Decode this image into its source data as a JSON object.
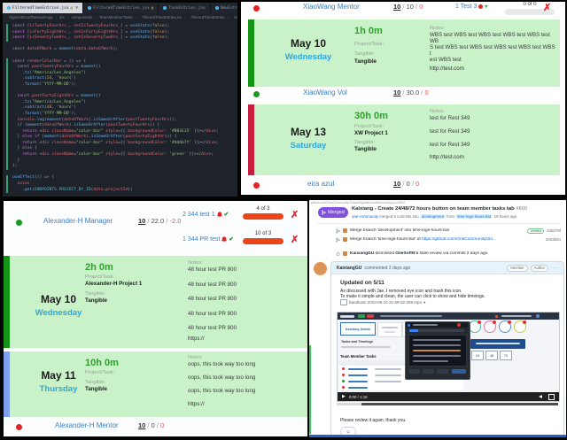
{
  "icons": {
    "x": "✗",
    "check": "✔",
    "chevron": "▾",
    "close": "×",
    "crumb_sep": "›",
    "play": "▶",
    "smiley": "☺",
    "ellipsis": "…",
    "kebab": "···",
    "attach_caret": "▾"
  },
  "labels": {
    "project": "Project/Task:",
    "tangible": "Tangible:",
    "notes": "Notes:",
    "sep": " / "
  },
  "editor": {
    "tabs": [
      {
        "label": "FilteredTimeEntries.jsx",
        "status": "M",
        "icon": "react",
        "active": true
      },
      {
        "label": "FilteredTimeEntries.jsx",
        "status": "M",
        "icon": "react",
        "active": false
      },
      {
        "label": "TaskEntries.jsx",
        "status": "",
        "icon": "react",
        "active": false
      },
      {
        "label": "NewEntryForm.jsx",
        "status": "",
        "icon": "react",
        "active": false
      },
      {
        "label": "checkRegist...",
        "status": "",
        "icon": "js",
        "active": false
      }
    ],
    "breadcrumb": [
      {
        "label": "HighestGoodNetworkApp",
        "icon": ""
      },
      {
        "label": "src",
        "icon": ""
      },
      {
        "label": "components",
        "icon": ""
      },
      {
        "label": "TeamMemberTasks",
        "icon": ""
      },
      {
        "label": "FilteredTimeEntries.jsx",
        "icon": "react"
      },
      {
        "label": "FilteredTimeEntries",
        "icon": "sym"
      },
      {
        "label": "renderColorBar",
        "icon": "sym"
      }
    ],
    "code": [
      "const [isTwentyFourHrs_, setIsTwentyFourHrs_] = useState(false);",
      "const [isFortyEightHrs_, setIsFortyEightHrs_] = useState(false);",
      "const [isSeventyTwoHrs_, setIsSeventyTwoHrs_] = useState(false);",
      "",
      "const dateOfWork = moment(data.dateOfWork);",
      "",
      "const renderColorBar = () => {",
      "  const pastTwentyFourHrs = moment()",
      "    .tz(\"America/Los_Angeles\")",
      "    .subtract(24, 'hours')",
      "    .format('YYYY-MM-DD');",
      "",
      "  const pastFortyEightHrs = moment()",
      "    .tz(\"America/Los_Angeles\")",
      "    .subtract(48, 'hours')",
      "    .format('YYYY-MM-DD');",
      "  console.log(moment(dateOfWork).isSameOrAfter(pastTwentyFourHrs));",
      "  if (moment(dateOfWork).isSameOrAfter(pastTwentyFourHrs)) {",
      "    return <div className=\"color-bar\" style={{ backgroundColor: '#B01E35' }}></div>;",
      "  } else if (moment(dateOfWork).isSameOrAfter(pastFortyEightHrs)) {",
      "    return <div className=\"color-bar\" style={{ backgroundColor: '#dd6b7f' }}></div>;",
      "  } else {",
      "    return <div className=\"color-bar\" style={{ backgroundColor: 'green' }}></div>;",
      "  }",
      "};",
      "",
      "useEffect(() => {",
      "  axios",
      "    .get(ENDPOINTS.PROJECT_BY_ID(data.projectId))"
    ]
  },
  "top_panel": {
    "rows": [
      {
        "name": "XiaoWang Mentor",
        "a": "10",
        "b": "10",
        "c": "0",
        "task": "1 Test 3",
        "progress": "0 of 0"
      },
      {
        "name": "XiaoWang Vol",
        "a": "10",
        "b": "30.0",
        "c": "0"
      },
      {
        "name": "eira azul",
        "a": "10",
        "b": "0",
        "c": "0"
      }
    ],
    "entries": [
      {
        "date": "May 10",
        "day": "Wednesday",
        "duration": "1h 0m",
        "project": "",
        "tangible": "Tangible",
        "notes": [
          "WBS test WBS test WBS test WBS test WBS test WB",
          "S test WBS test WBS test WBS test WBS test WBS t",
          "est  WBS test"
        ],
        "link": "http://test.com"
      },
      {
        "date": "May 13",
        "day": "Saturday",
        "duration": "30h 0m",
        "project": "XW Project 1",
        "tangible": "Tangible",
        "notes": [
          "test for Rest 349",
          "test for Rest 349",
          "test for Rest 349"
        ],
        "link": "http://test.com"
      }
    ]
  },
  "bottom_panel": {
    "rows": [
      {
        "name": "Alexander-H Manager",
        "a": "10",
        "b": "22.0",
        "c": "-2.0"
      },
      {
        "name": "Alexander-H Mentor",
        "a": "10",
        "b": "0",
        "c": "0"
      }
    ],
    "tasks": [
      {
        "label": "2 344 test 1",
        "progress": "4 of 3"
      },
      {
        "label": "1 344 PR test",
        "progress": "10 of 3"
      }
    ],
    "entries": [
      {
        "date": "May 10",
        "day": "Wednesday",
        "duration": "2h 0m",
        "project": "Alexander-H Project 1",
        "tangible": "Tangible",
        "notes": [
          "48 hour test PR 800",
          "48 hour test PR 800",
          "48 hour test PR 800",
          "48 hour test PR 800",
          "48 hour test PR 800"
        ],
        "link": "https://"
      },
      {
        "date": "May 11",
        "day": "Thursday",
        "duration": "10h 0m",
        "project": "",
        "tangible": "Tangible",
        "notes": [
          "oops, this took way too long",
          "oops, this took way too long",
          "oops, this took way too long"
        ],
        "link": "https://"
      }
    ]
  },
  "github": {
    "url": "github.com/OneCommunityGlobal/HighestGoodNetworkApp/pull/800",
    "merged_badge": "Merged",
    "title": "Kaixiang - Create 24/48/72 hours button on team member tasks tab",
    "pr_number": "#800",
    "merge_line": {
      "user": "one-community",
      "action": "merged 5 commits into",
      "base": "development",
      "from_word": "from",
      "head": "time-logs-hours-bar",
      "time": "19 hours ago"
    },
    "timeline": [
      {
        "text": "Merge branch 'development' into time-logs-hours-bar",
        "badge": "Verified",
        "hash": "33d279f"
      },
      {
        "text": "Merge branch 'time-logs-hours-bar' of",
        "link": "https://github.com/OneCommunityGlo…",
        "hash": "2e03b94"
      },
      {
        "user": "KaixiangGU",
        "action": "dismissed",
        "target": "OneSoftN's",
        "rest": "stale review via commits  2 days ago"
      }
    ],
    "comment": {
      "author": "KaixiangGU",
      "meta": "commented 2 days ago",
      "badges": [
        "Member",
        "Author"
      ],
      "heading": "Updated on 5/11",
      "body_line1": "As discussed with Jae, I removed eye icon and trash this icon.",
      "body_line2": "To make it simple and clean, the user can click to show and hide timelogs.",
      "attachment": "bandicam 2023-05-10 21-59-32-269.mp4",
      "closing": "Please review it again, thank you."
    },
    "video": {
      "time": "0:00 / 1:18",
      "thumb": {
        "profile": "Kaixiang Admin",
        "tasks_heading": "Tasks and Timelogs",
        "table_heading": "Team Member Tasks",
        "buttons": [
          "24",
          "48",
          "72"
        ]
      }
    }
  }
}
